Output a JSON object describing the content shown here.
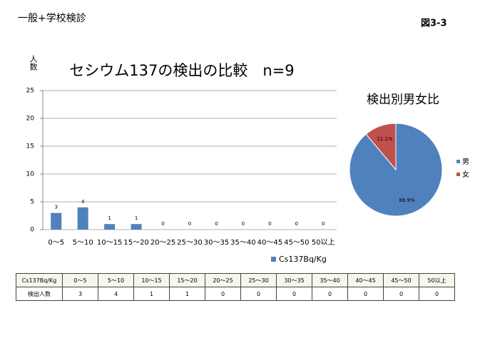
{
  "header": {
    "title": "一般+学校検診",
    "figure": "図3-3"
  },
  "chart_data": [
    {
      "type": "bar",
      "title": "セシウム137の検出の比較　n=9",
      "y_label": "人数",
      "categories": [
        "0～5",
        "5～10",
        "10～15",
        "15～20",
        "20～25",
        "25～30",
        "30～35",
        "35～40",
        "40～45",
        "45～50",
        "50以上"
      ],
      "series": [
        {
          "name": "Cs137Bq/Kg",
          "color": "#4f81bd",
          "values": [
            3,
            4,
            1,
            1,
            0,
            0,
            0,
            0,
            0,
            0,
            0
          ]
        }
      ],
      "ylim": [
        0,
        25
      ],
      "yticks": [
        0,
        5,
        10,
        15,
        20,
        25
      ],
      "grid": true,
      "legend": "bottom"
    },
    {
      "type": "pie",
      "title": "検出別男女比",
      "categories": [
        "男",
        "女"
      ],
      "values": [
        88.9,
        11.1
      ],
      "value_labels": [
        "88.9%",
        "11.1%"
      ],
      "colors": [
        "#4f81bd",
        "#c0504d"
      ],
      "legend": "right"
    }
  ],
  "table": {
    "rows": [
      [
        "Cs137Bq/Kg",
        "0～5",
        "5～10",
        "10～15",
        "15～20",
        "20～25",
        "25～30",
        "30～35",
        "35～40",
        "40～45",
        "45～50",
        "50以上"
      ],
      [
        "検出人数",
        3,
        4,
        1,
        1,
        0,
        0,
        0,
        0,
        0,
        0,
        0
      ]
    ]
  }
}
